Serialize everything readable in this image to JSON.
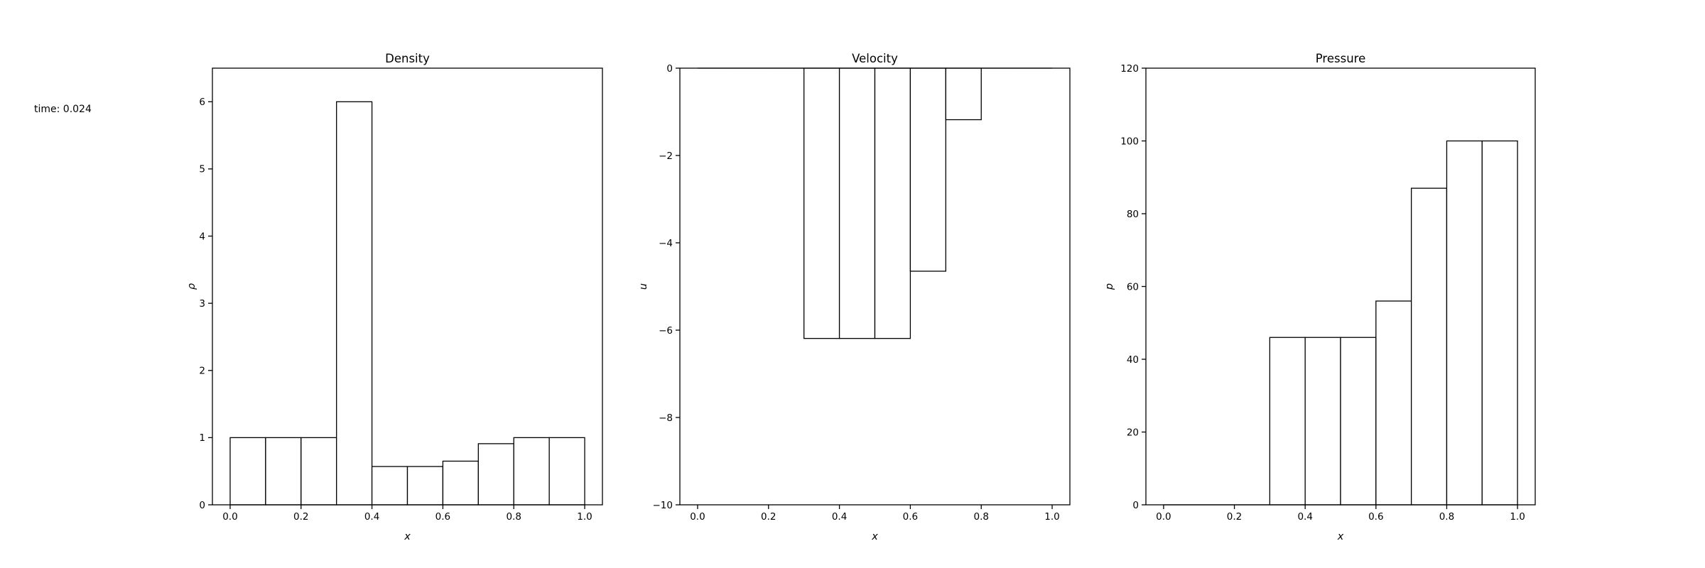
{
  "figure": {
    "time_label": "time: 0.024",
    "background": "#ffffff",
    "foreground": "#000000"
  },
  "chart_data": [
    {
      "type": "bar",
      "title": "Density",
      "xlabel": "x",
      "ylabel": "ρ",
      "bar_fill": "#ffffff",
      "edge_color": "#000000",
      "grid": false,
      "xlim": [
        -0.05,
        1.05
      ],
      "ylim": [
        0,
        6.5
      ],
      "bin_edges": [
        0.0,
        0.1,
        0.2,
        0.3,
        0.4,
        0.5,
        0.6,
        0.7,
        0.8,
        0.9,
        1.0
      ],
      "values": [
        1.0,
        1.0,
        1.0,
        6.0,
        0.57,
        0.57,
        0.65,
        0.91,
        1.0,
        1.0
      ],
      "xtick_values": [
        0.0,
        0.2,
        0.4,
        0.6,
        0.8,
        1.0
      ],
      "xtick_labels": [
        "0.0",
        "0.2",
        "0.4",
        "0.6",
        "0.8",
        "1.0"
      ],
      "ytick_values": [
        0,
        1,
        2,
        3,
        4,
        5,
        6
      ],
      "ytick_labels": [
        "0",
        "1",
        "2",
        "3",
        "4",
        "5",
        "6"
      ]
    },
    {
      "type": "bar",
      "title": "Velocity",
      "xlabel": "x",
      "ylabel": "u",
      "bar_fill": "#ffffff",
      "edge_color": "#000000",
      "grid": false,
      "xlim": [
        -0.05,
        1.05
      ],
      "ylim": [
        -10,
        0
      ],
      "bin_edges": [
        0.0,
        0.1,
        0.2,
        0.3,
        0.4,
        0.5,
        0.6,
        0.7,
        0.8,
        0.9,
        1.0
      ],
      "values": [
        0,
        0,
        0,
        -6.19,
        -6.19,
        -6.19,
        -4.65,
        -1.18,
        0,
        0
      ],
      "xtick_values": [
        0.0,
        0.2,
        0.4,
        0.6,
        0.8,
        1.0
      ],
      "xtick_labels": [
        "0.0",
        "0.2",
        "0.4",
        "0.6",
        "0.8",
        "1.0"
      ],
      "ytick_values": [
        0,
        -2,
        -4,
        -6,
        -8,
        -10
      ],
      "ytick_labels": [
        "0",
        "−2",
        "−4",
        "−6",
        "−8",
        "−10"
      ]
    },
    {
      "type": "bar",
      "title": "Pressure",
      "xlabel": "x",
      "ylabel": "p",
      "bar_fill": "#ffffff",
      "edge_color": "#000000",
      "grid": false,
      "xlim": [
        -0.05,
        1.05
      ],
      "ylim": [
        0,
        120
      ],
      "bin_edges": [
        0.0,
        0.1,
        0.2,
        0.3,
        0.4,
        0.5,
        0.6,
        0.7,
        0.8,
        0.9,
        1.0
      ],
      "values": [
        0,
        0,
        0,
        46,
        46,
        46,
        56,
        87,
        100,
        100
      ],
      "xtick_values": [
        0.0,
        0.2,
        0.4,
        0.6,
        0.8,
        1.0
      ],
      "xtick_labels": [
        "0.0",
        "0.2",
        "0.4",
        "0.6",
        "0.8",
        "1.0"
      ],
      "ytick_values": [
        0,
        20,
        40,
        60,
        80,
        100,
        120
      ],
      "ytick_labels": [
        "0",
        "20",
        "40",
        "60",
        "80",
        "100",
        "120"
      ]
    }
  ]
}
